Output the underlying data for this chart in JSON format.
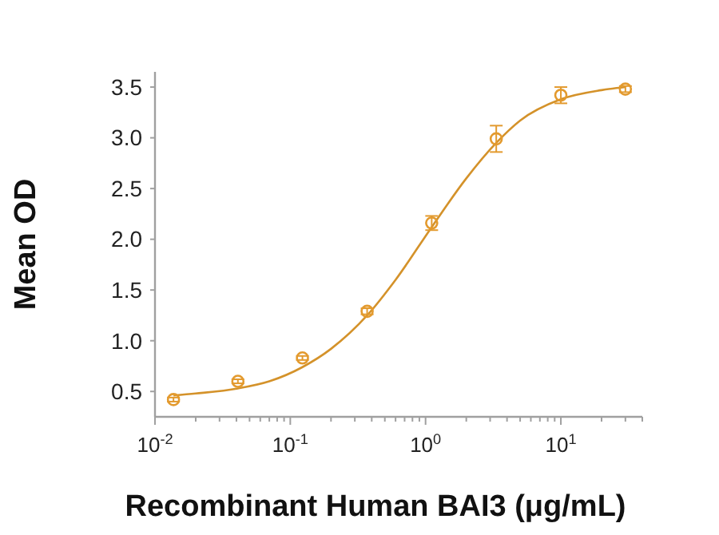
{
  "chart_data": {
    "type": "scatter",
    "xlabel": "Recombinant Human BAI3 (μg/mL)",
    "ylabel": "Mean OD",
    "log": "x",
    "grid": false,
    "marker": "circle",
    "xlim": [
      0.01,
      40
    ],
    "ylim": [
      0.25,
      3.65
    ],
    "yticks": [
      0.5,
      {
        "value": 1,
        "label": "1.0"
      },
      1.5,
      {
        "value": 2,
        "label": "2.0"
      },
      2.5,
      {
        "value": 3,
        "label": "3.0"
      },
      3.5
    ],
    "xticks": [
      {
        "value": 0.01,
        "label": "10$^{-2}$"
      },
      {
        "value": 0.02,
        "label": null
      },
      {
        "value": 0.03,
        "label": null
      },
      {
        "value": 0.04,
        "label": null
      },
      {
        "value": 0.05,
        "label": null
      },
      {
        "value": 0.06,
        "label": null
      },
      {
        "value": 0.07,
        "label": null
      },
      {
        "value": 0.08,
        "label": null
      },
      {
        "value": 0.09,
        "label": null
      },
      {
        "value": 0.1,
        "label": "10$^{-1}$"
      },
      {
        "value": 0.2,
        "label": null
      },
      {
        "value": 0.3,
        "label": null
      },
      {
        "value": 0.4,
        "label": null
      },
      {
        "value": 0.5,
        "label": null
      },
      {
        "value": 0.6,
        "label": null
      },
      {
        "value": 0.7,
        "label": null
      },
      {
        "value": 0.8,
        "label": null
      },
      {
        "value": 0.9,
        "label": null
      },
      {
        "value": 1,
        "label": "10$^{0}$"
      },
      {
        "value": 2,
        "label": null
      },
      {
        "value": 3,
        "label": null
      },
      {
        "value": 4,
        "label": null
      },
      {
        "value": 5,
        "label": null
      },
      {
        "value": 6,
        "label": null
      },
      {
        "value": 7,
        "label": null
      },
      {
        "value": 8,
        "label": null
      },
      {
        "value": 9,
        "label": null
      },
      {
        "value": 10,
        "label": "10$^{1}$"
      },
      {
        "value": 20,
        "label": null
      },
      {
        "value": 30,
        "label": null
      },
      {
        "value": 40,
        "label": null
      }
    ],
    "series": [
      {
        "color": "#e39a2e",
        "x": [
          0.0137,
          0.041,
          0.123,
          0.37,
          1.11,
          3.33,
          10,
          30
        ],
        "values": [
          0.42,
          0.6,
          0.83,
          1.29,
          2.16,
          2.99,
          3.42,
          3.48
        ],
        "errors": [
          0.02,
          0.02,
          0.02,
          0.03,
          0.07,
          0.13,
          0.08,
          0.03
        ]
      },
      {
        "type": "line",
        "color": "#d4922a",
        "marker": "none",
        "x": [
          0.0137,
          0.02,
          0.041,
          0.07,
          0.123,
          0.2,
          0.37,
          0.6,
          1.11,
          2,
          3.33,
          5,
          10,
          20,
          30
        ],
        "values": [
          0.46,
          0.48,
          0.53,
          0.6,
          0.74,
          0.92,
          1.25,
          1.6,
          2.12,
          2.6,
          2.95,
          3.17,
          3.38,
          3.47,
          3.5
        ]
      }
    ]
  }
}
